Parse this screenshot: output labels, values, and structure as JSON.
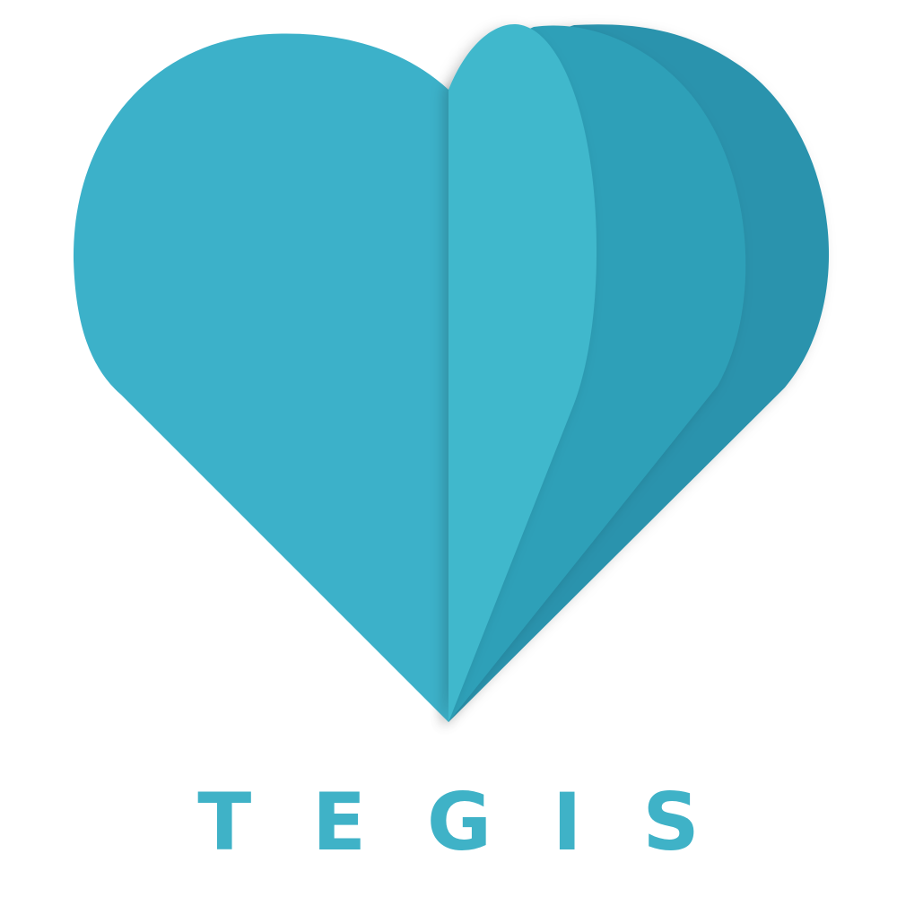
{
  "logo": {
    "brand_name": "TEGIS",
    "icon": "folded-paper-heart-icon"
  },
  "colors": {
    "background": "#ffffff",
    "heart_left": "#3cb1c9",
    "petal_front": "#41b8cc",
    "petal_middle": "#2ea0b8",
    "petal_back": "#2a93ad",
    "text": "#3fb2c7"
  }
}
